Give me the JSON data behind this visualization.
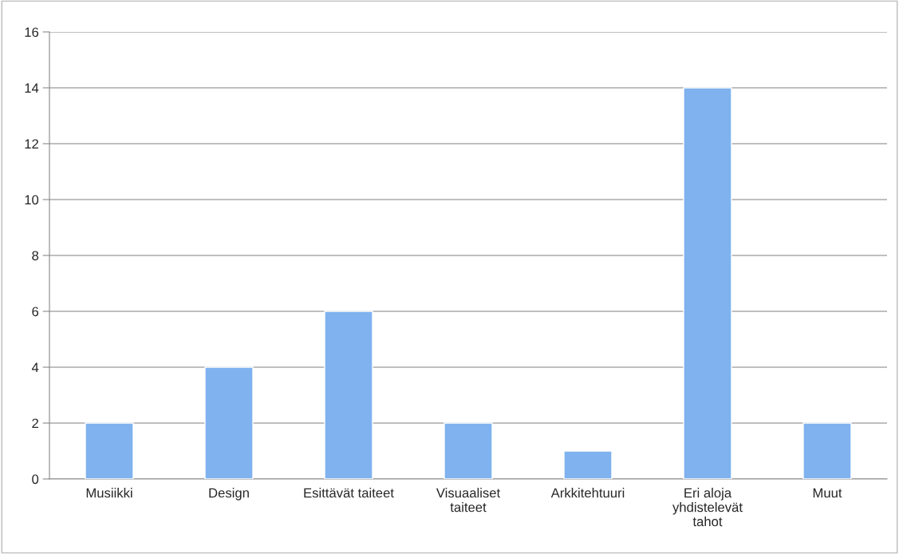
{
  "chart_data": {
    "type": "bar",
    "categories": [
      "Musiikki",
      "Design",
      "Esittävät taiteet",
      "Visuaaliset\ntaiteet",
      "Arkkitehtuuri",
      "Eri aloja\nyhdistelevät\ntahot",
      "Muut"
    ],
    "values": [
      2,
      4,
      6,
      2,
      1,
      14,
      2
    ],
    "color": "#7fb2ee",
    "ylim": [
      0,
      16
    ],
    "yticks": [
      0,
      2,
      4,
      6,
      8,
      10,
      12,
      14,
      16
    ],
    "grid": "y"
  }
}
